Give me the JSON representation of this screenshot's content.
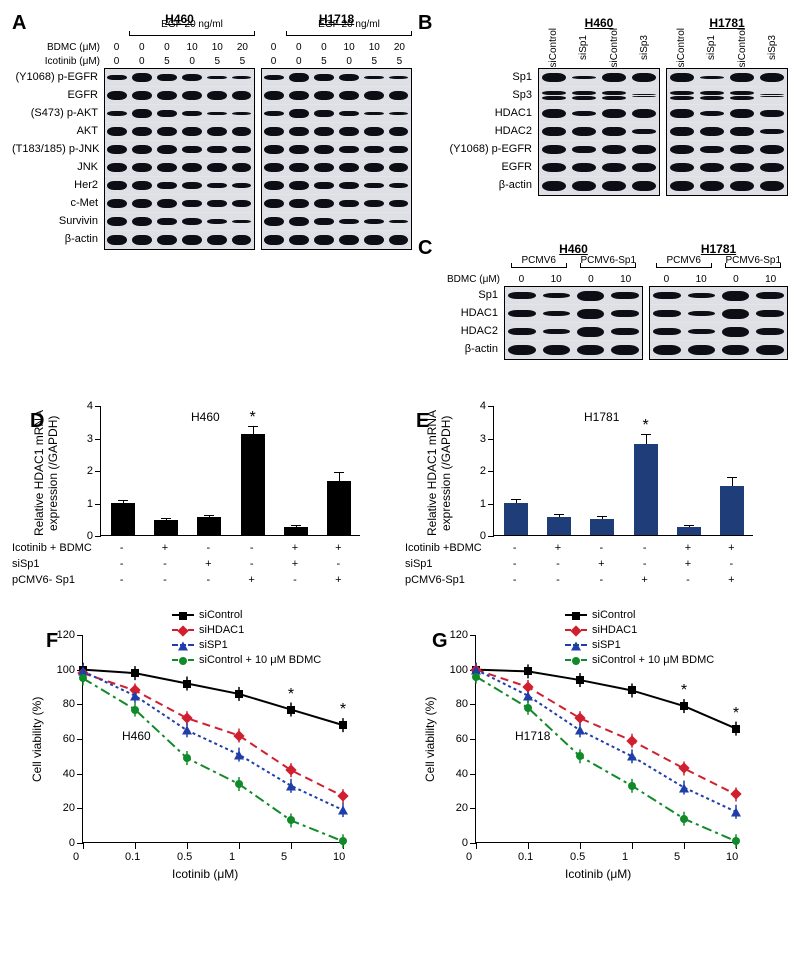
{
  "panels": {
    "A": "A",
    "B": "B",
    "C": "C",
    "D": "D",
    "E": "E",
    "F": "F",
    "G": "G"
  },
  "A": {
    "cell_lines": [
      "H460",
      "H1718"
    ],
    "treat_header": "EGF 20 ng/ml",
    "cond_rows": [
      {
        "label": "BDMC (μM)",
        "vals": [
          "0",
          "0",
          "0",
          "10",
          "10",
          "20"
        ]
      },
      {
        "label": "Icotinib (μM)",
        "vals": [
          "0",
          "0",
          "5",
          "0",
          "5",
          "5"
        ]
      }
    ],
    "rows": [
      "(Y1068) p-EGFR",
      "EGFR",
      "(S473) p-AKT",
      "AKT",
      "(T183/185) p-JNK",
      "JNK",
      "Her2",
      "c-Met",
      "Survivin",
      "β-actin"
    ],
    "intensity": {
      "H460": [
        [
          5,
          9,
          7,
          6,
          3,
          2
        ],
        [
          8,
          8,
          8,
          8,
          8,
          8
        ],
        [
          4,
          9,
          7,
          5,
          3,
          2
        ],
        [
          8,
          8,
          8,
          8,
          8,
          8
        ],
        [
          8,
          8,
          8,
          7,
          7,
          7
        ],
        [
          8,
          8,
          8,
          8,
          8,
          8
        ],
        [
          9,
          8,
          7,
          6,
          5,
          4
        ],
        [
          8,
          8,
          8,
          7,
          7,
          6
        ],
        [
          8,
          8,
          7,
          6,
          4,
          3
        ],
        [
          9,
          9,
          9,
          9,
          9,
          9
        ]
      ],
      "H1718": [
        [
          4,
          9,
          7,
          6,
          3,
          2
        ],
        [
          8,
          8,
          8,
          8,
          8,
          8
        ],
        [
          4,
          9,
          7,
          5,
          3,
          2
        ],
        [
          8,
          8,
          8,
          8,
          8,
          8
        ],
        [
          8,
          8,
          8,
          7,
          7,
          7
        ],
        [
          8,
          8,
          8,
          8,
          8,
          8
        ],
        [
          8,
          8,
          7,
          6,
          5,
          4
        ],
        [
          8,
          8,
          8,
          7,
          6,
          6
        ],
        [
          8,
          8,
          7,
          5,
          4,
          3
        ],
        [
          9,
          9,
          9,
          9,
          9,
          9
        ]
      ]
    }
  },
  "B": {
    "cell_lines": [
      "H460",
      "H1781"
    ],
    "lane_labels": [
      "siControl",
      "siSp1",
      "siControl",
      "siSp3"
    ],
    "rows": [
      "Sp1",
      "Sp3",
      "HDAC1",
      "HDAC2",
      "(Y1068) p-EGFR",
      "EGFR",
      "β-actin"
    ],
    "doublet": [
      false,
      true,
      false,
      false,
      false,
      false,
      false
    ],
    "intensity": {
      "H460": [
        [
          9,
          2,
          9,
          8
        ],
        [
          9,
          9,
          9,
          2
        ],
        [
          9,
          4,
          9,
          8
        ],
        [
          9,
          8,
          9,
          5
        ],
        [
          8,
          7,
          8,
          8
        ],
        [
          8,
          8,
          8,
          8
        ],
        [
          9,
          9,
          9,
          9
        ]
      ],
      "H1781": [
        [
          9,
          2,
          9,
          8
        ],
        [
          9,
          9,
          9,
          2
        ],
        [
          9,
          4,
          9,
          7
        ],
        [
          9,
          8,
          9,
          5
        ],
        [
          8,
          7,
          8,
          8
        ],
        [
          8,
          8,
          8,
          8
        ],
        [
          9,
          9,
          9,
          9
        ]
      ]
    }
  },
  "C": {
    "cell_lines": [
      "H460",
      "H1781"
    ],
    "plasmids": [
      "PCMV6",
      "PCMV6-Sp1"
    ],
    "cond_rows": [
      {
        "label": "BDMC (μM)",
        "vals": [
          "0",
          "10",
          "0",
          "10"
        ]
      }
    ],
    "rows": [
      "Sp1",
      "HDAC1",
      "HDAC2",
      "β-actin"
    ],
    "intensity": {
      "H460": [
        [
          7,
          4,
          10,
          7
        ],
        [
          7,
          4,
          10,
          7
        ],
        [
          7,
          5,
          10,
          7
        ],
        [
          9,
          9,
          9,
          9
        ]
      ],
      "H1781": [
        [
          7,
          4,
          10,
          7
        ],
        [
          7,
          4,
          10,
          7
        ],
        [
          7,
          5,
          10,
          7
        ],
        [
          9,
          9,
          9,
          9
        ]
      ]
    }
  },
  "D": {
    "title": "H460",
    "ylabel": "Relative HDAC1 mRNA\nexpression (/GAPDH)",
    "ylim": [
      0,
      4
    ],
    "ytick_step": 1,
    "bar_color": "#000000",
    "values": [
      1.0,
      0.45,
      0.55,
      3.1,
      0.25,
      1.65
    ],
    "errors": [
      0.08,
      0.07,
      0.07,
      0.25,
      0.05,
      0.3
    ],
    "star_index": 3,
    "x_rows": [
      {
        "label": "Icotinib + BDMC",
        "marks": [
          "-",
          "+",
          "-",
          "-",
          "+",
          "+"
        ]
      },
      {
        "label": "siSp1",
        "marks": [
          "-",
          "-",
          "+",
          "-",
          "+",
          "-"
        ]
      },
      {
        "label": "pCMV6- Sp1",
        "marks": [
          "-",
          "-",
          "-",
          "+",
          "-",
          "+"
        ]
      }
    ]
  },
  "E": {
    "title": "H1781",
    "ylabel": "Relative HDAC1 mRNA\nexpression (/GAPDH)",
    "ylim": [
      0,
      4
    ],
    "ytick_step": 1,
    "bar_color": "#1f3e79",
    "values": [
      1.0,
      0.55,
      0.5,
      2.8,
      0.25,
      1.5
    ],
    "errors": [
      0.12,
      0.1,
      0.08,
      0.3,
      0.05,
      0.3
    ],
    "star_index": 3,
    "x_rows": [
      {
        "label": "Icotinib +BDMC",
        "marks": [
          "-",
          "+",
          "-",
          "-",
          "+",
          "+"
        ]
      },
      {
        "label": "siSp1",
        "marks": [
          "-",
          "-",
          "+",
          "-",
          "+",
          "-"
        ]
      },
      {
        "label": "pCMV6-Sp1",
        "marks": [
          "-",
          "-",
          "-",
          "+",
          "-",
          "+"
        ]
      }
    ]
  },
  "F": {
    "title": "H460",
    "xlabel": "Icotinib (μM)",
    "ylabel": "Cell viability (%)",
    "xcats": [
      "0",
      "0.1",
      "0.5",
      "1",
      "5",
      "10"
    ],
    "ylim": [
      0,
      120
    ],
    "ytick_step": 20,
    "series": [
      {
        "name": "siControl",
        "color": "#000000",
        "dash": "solid",
        "marker": "sq",
        "y": [
          100,
          98,
          92,
          86,
          77,
          68
        ]
      },
      {
        "name": "siHDAC1",
        "color": "#d02030",
        "dash": "8,5",
        "marker": "di",
        "y": [
          98,
          88,
          72,
          62,
          42,
          27
        ]
      },
      {
        "name": "siSP1",
        "color": "#1f3ea8",
        "dash": "3,3",
        "marker": "tr",
        "y": [
          99,
          85,
          65,
          51,
          33,
          19
        ]
      },
      {
        "name": "siControl + 10 μM BDMC",
        "color": "#118a2a",
        "dash": "10,4,3,4",
        "marker": "ci",
        "y": [
          95,
          77,
          49,
          34,
          13,
          1
        ]
      }
    ],
    "star_x": [
      4,
      5
    ]
  },
  "G": {
    "title": "H1718",
    "xlabel": "Icotinib (μM)",
    "ylabel": "Cell viability (%)",
    "xcats": [
      "0",
      "0.1",
      "0.5",
      "1",
      "5",
      "10"
    ],
    "ylim": [
      0,
      120
    ],
    "ytick_step": 20,
    "series": [
      {
        "name": "siControl",
        "color": "#000000",
        "dash": "solid",
        "marker": "sq",
        "y": [
          100,
          99,
          94,
          88,
          79,
          66
        ]
      },
      {
        "name": "siHDAC1",
        "color": "#d02030",
        "dash": "8,5",
        "marker": "di",
        "y": [
          100,
          90,
          72,
          59,
          43,
          28
        ]
      },
      {
        "name": "siSP1",
        "color": "#1f3ea8",
        "dash": "3,3",
        "marker": "tr",
        "y": [
          100,
          85,
          65,
          50,
          32,
          18
        ]
      },
      {
        "name": "siControl + 10 μM BDMC",
        "color": "#118a2a",
        "dash": "10,4,3,4",
        "marker": "ci",
        "y": [
          96,
          78,
          50,
          33,
          14,
          1
        ]
      }
    ],
    "star_x": [
      4,
      5
    ]
  }
}
